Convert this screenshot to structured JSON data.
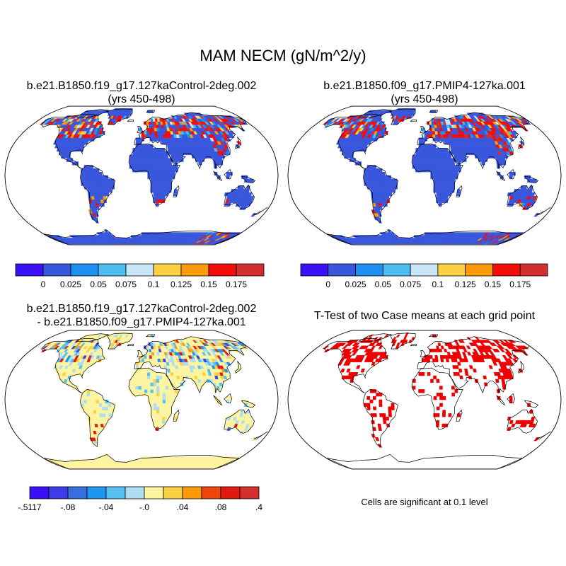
{
  "title": "MAM NECM (gN/m^2/y)",
  "panels": [
    {
      "title_line1": "b.e21.B1850.f19_g17.127kaControl-2deg.002",
      "title_line2": "(yrs 450-498)"
    },
    {
      "title_line1": "b.e21.B1850.f09_g17.PMIP4-127ka.001",
      "title_line2": "(yrs 450-498)"
    },
    {
      "title_line1": "b.e21.B1850.f19_g17.127kaControl-2deg.002",
      "title_line2": "- b.e21.B1850.f09_g17.PMIP4-127ka.001"
    },
    {
      "title_line1": "T-Test of two Case means at each grid point",
      "title_line2": ""
    }
  ],
  "colorbar_top": {
    "colors": [
      "#3b10f5",
      "#3957dd",
      "#1c8ff0",
      "#4dbcf0",
      "#c7e7f6",
      "#fcd044",
      "#fa9b0c",
      "#f20c0a",
      "#d2302e"
    ],
    "labels": [
      "0",
      "0.025",
      "0.05",
      "0.075",
      "0.1",
      "0.125",
      "0.15",
      "0.175"
    ]
  },
  "colorbar_diff": {
    "colors": [
      "#3b10f5",
      "#3c3de6",
      "#3a6ddc",
      "#1f95f0",
      "#55c0f2",
      "#aedcf2",
      "#fdf4a0",
      "#fcd044",
      "#fa9b0c",
      "#f0440f",
      "#e11a10",
      "#d2302e"
    ],
    "labels": [
      "-.5117",
      "-.08",
      "-.04",
      "-.0",
      ".04",
      ".08",
      ".4"
    ]
  },
  "significance_note": "Cells are significant at 0.1 level"
}
